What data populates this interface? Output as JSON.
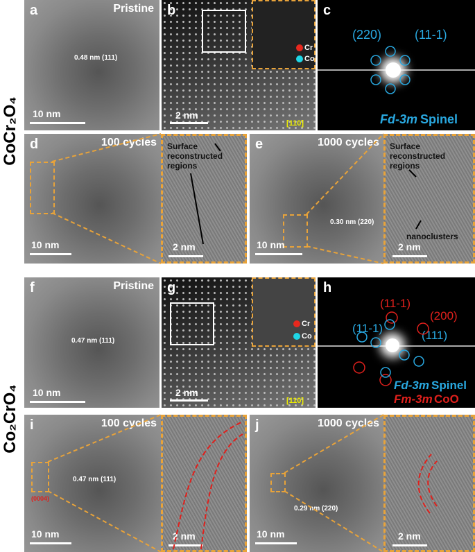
{
  "row_labels": [
    "CoCr₂O₄",
    "Co₂CrO₄"
  ],
  "panels": {
    "a": {
      "label": "a",
      "title": "Pristine",
      "spacing": "0.48 nm (111)",
      "scale": "10 nm"
    },
    "b": {
      "label": "b",
      "scale": "2 nm",
      "zone": "[110]",
      "legend": [
        "Cr",
        "Co"
      ]
    },
    "c": {
      "label": "c",
      "spots": [
        "(220)",
        "(11-1)"
      ],
      "phase": [
        "Fd-3m",
        "Spinel"
      ]
    },
    "d": {
      "label": "d",
      "title": "100 cycles",
      "scale": "10 nm",
      "inset_note": "Surface reconstructed regions",
      "inset_scale": "2 nm"
    },
    "e": {
      "label": "e",
      "title": "1000 cycles",
      "spacing": "0.30 nm (220)",
      "scale": "10 nm",
      "inset_note": "Surface reconstructed regions",
      "inset_note2": "nanoclusters",
      "inset_scale": "2 nm"
    },
    "f": {
      "label": "f",
      "title": "Pristine",
      "spacing": "0.47 nm (111)",
      "scale": "10 nm"
    },
    "g": {
      "label": "g",
      "scale": "2 nm",
      "zone": "[110]",
      "legend": [
        "Cr",
        "Co"
      ]
    },
    "h": {
      "label": "h",
      "spots": [
        "(11-1)",
        "(200)",
        "(11-1)",
        "(111)"
      ],
      "phase": [
        "Fd-3m",
        "Spinel"
      ],
      "phase2": [
        "Fm-3m",
        "CoO"
      ]
    },
    "i": {
      "label": "i",
      "title": "100 cycles",
      "spacing": "0.47 nm (111)",
      "facet": "(0004)",
      "scale": "10 nm",
      "inset_scale": "2 nm"
    },
    "j": {
      "label": "j",
      "title": "1000 cycles",
      "spacing": "0.29 nm (220)",
      "scale": "10 nm",
      "inset_scale": "2 nm"
    }
  }
}
